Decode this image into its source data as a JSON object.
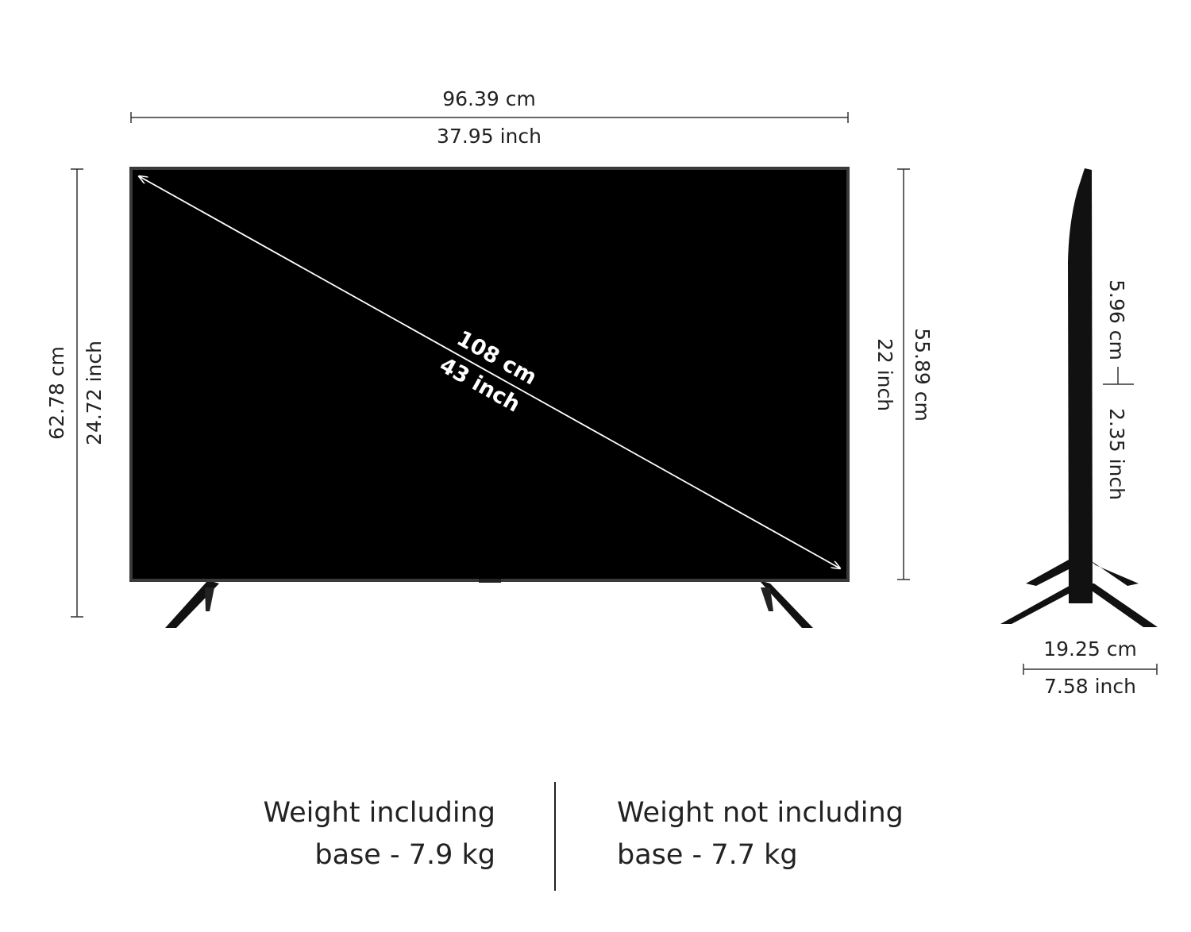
{
  "width": {
    "cm": "96.39 cm",
    "inch": "37.95 inch"
  },
  "height_with_stand": {
    "cm": "62.78 cm",
    "inch": "24.72 inch"
  },
  "screen_height": {
    "cm": "55.89 cm",
    "inch": "22 inch"
  },
  "diagonal": {
    "cm": "108 cm",
    "inch": "43 inch"
  },
  "panel_depth": {
    "cm": "5.96 cm",
    "inch": "2.35 inch"
  },
  "stand_depth": {
    "cm": "19.25 cm",
    "inch": "7.58 inch"
  },
  "weights": [
    {
      "line1": "Weight including",
      "line2": "base - 7.9 kg"
    },
    {
      "line1": "Weight not including",
      "line2": "base - 7.7 kg"
    }
  ]
}
